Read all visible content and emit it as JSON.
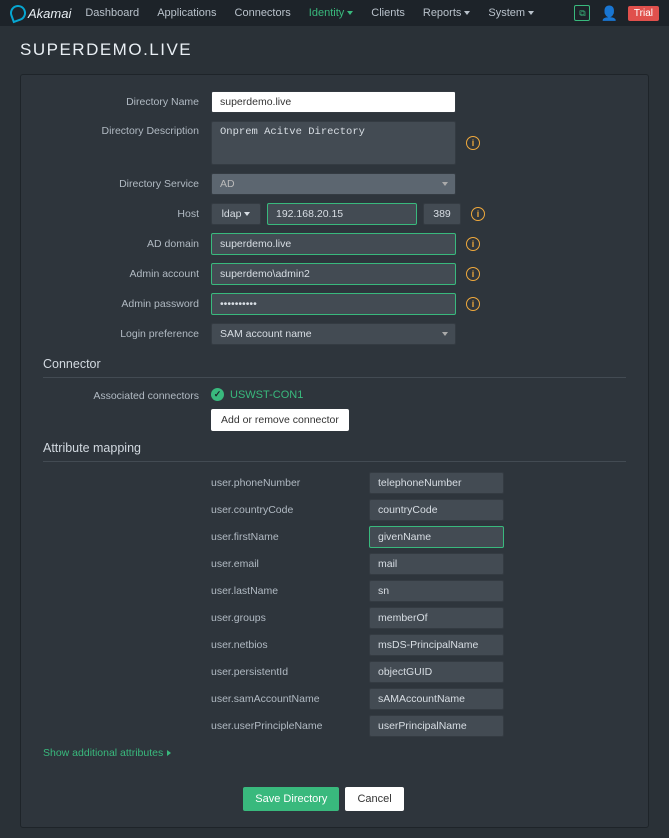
{
  "brand": "Akamai",
  "nav": {
    "dashboard": "Dashboard",
    "applications": "Applications",
    "connectors": "Connectors",
    "identity": "Identity",
    "clients": "Clients",
    "reports": "Reports",
    "system": "System"
  },
  "trial": "Trial",
  "page_title": "SUPERDEMO.LIVE",
  "labels": {
    "dir_name": "Directory Name",
    "dir_desc": "Directory Description",
    "dir_service": "Directory Service",
    "host": "Host",
    "ad_domain": "AD domain",
    "admin_account": "Admin account",
    "admin_password": "Admin password",
    "login_pref": "Login preference",
    "assoc_conn": "Associated connectors"
  },
  "values": {
    "dir_name": "superdemo.live",
    "dir_desc": "Onprem Acitve Directory",
    "dir_service": "AD",
    "host_protocol": "ldap",
    "host_ip": "192.168.20.15",
    "host_port": "389",
    "ad_domain": "superdemo.live",
    "admin_account": "superdemo\\admin2",
    "admin_password": "••••••••••",
    "login_pref": "SAM account name"
  },
  "sections": {
    "connector": "Connector",
    "attribute_mapping": "Attribute mapping"
  },
  "connector": {
    "name": "USWST-CON1",
    "add_remove": "Add or remove connector"
  },
  "attrs": [
    {
      "label": "user.phoneNumber",
      "value": "telephoneNumber"
    },
    {
      "label": "user.countryCode",
      "value": "countryCode"
    },
    {
      "label": "user.firstName",
      "value": "givenName",
      "active": true
    },
    {
      "label": "user.email",
      "value": "mail"
    },
    {
      "label": "user.lastName",
      "value": "sn"
    },
    {
      "label": "user.groups",
      "value": "memberOf"
    },
    {
      "label": "user.netbios",
      "value": "msDS-PrincipalName"
    },
    {
      "label": "user.persistentId",
      "value": "objectGUID"
    },
    {
      "label": "user.samAccountName",
      "value": "sAMAccountName"
    },
    {
      "label": "user.userPrincipleName",
      "value": "userPrincipalName"
    }
  ],
  "show_more": "Show additional attributes",
  "buttons": {
    "save": "Save Directory",
    "cancel": "Cancel"
  }
}
